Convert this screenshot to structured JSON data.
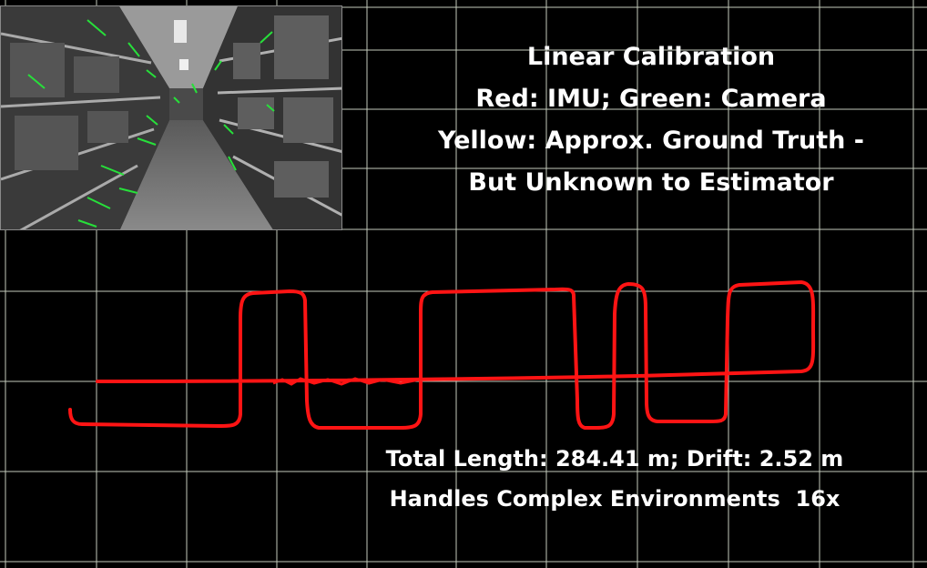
{
  "title_lines": {
    "line1": "Linear Calibration",
    "line2": "Red: IMU; Green: Camera",
    "line3": "Yellow: Approx. Ground Truth -",
    "line4": "But Unknown to Estimator"
  },
  "stats": {
    "length_drift": "Total Length: 284.41 m; Drift: 2.52 m",
    "environments": "Handles Complex Environments  16x"
  },
  "colors": {
    "background": "#000000",
    "grid": "#e6eedc",
    "imu_trajectory": "#ff1414",
    "text": "#ffffff",
    "features": "#27e03a"
  }
}
